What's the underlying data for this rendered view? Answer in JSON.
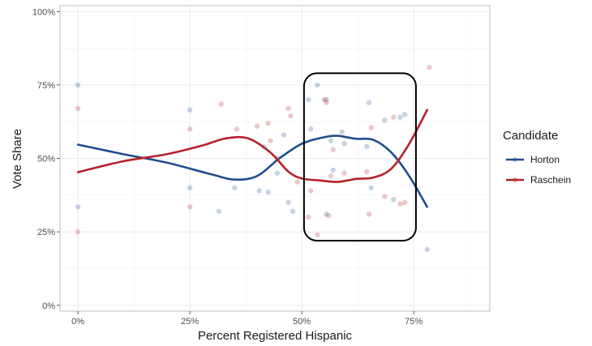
{
  "chart_data": {
    "type": "scatter",
    "xlabel": "Percent Registered Hispanic",
    "ylabel": "Vote Share",
    "xlim": [
      -0.04,
      0.92
    ],
    "ylim": [
      -0.02,
      1.02
    ],
    "x_ticks": [
      0,
      0.25,
      0.5,
      0.75
    ],
    "x_tick_labels": [
      "0%",
      "25%",
      "50%",
      "75%"
    ],
    "y_ticks": [
      0,
      0.25,
      0.5,
      0.75,
      1.0
    ],
    "y_tick_labels": [
      "0%",
      "25%",
      "50%",
      "75%",
      "100%"
    ],
    "grid": true,
    "legend": {
      "title": "Candidate",
      "position": "right"
    },
    "series": [
      {
        "name": "Horton",
        "color": "#1f4e8c",
        "points": [
          [
            0.0,
            0.75
          ],
          [
            0.0,
            0.335
          ],
          [
            0.25,
            0.665
          ],
          [
            0.25,
            0.4
          ],
          [
            0.315,
            0.32
          ],
          [
            0.35,
            0.4
          ],
          [
            0.405,
            0.39
          ],
          [
            0.415,
            0.54
          ],
          [
            0.425,
            0.385
          ],
          [
            0.445,
            0.45
          ],
          [
            0.46,
            0.58
          ],
          [
            0.47,
            0.35
          ],
          [
            0.48,
            0.32
          ],
          [
            0.515,
            0.7
          ],
          [
            0.52,
            0.6
          ],
          [
            0.535,
            0.75
          ],
          [
            0.555,
            0.7
          ],
          [
            0.555,
            0.31
          ],
          [
            0.565,
            0.56
          ],
          [
            0.57,
            0.46
          ],
          [
            0.59,
            0.59
          ],
          [
            0.595,
            0.55
          ],
          [
            0.645,
            0.54
          ],
          [
            0.65,
            0.69
          ],
          [
            0.655,
            0.4
          ],
          [
            0.685,
            0.63
          ],
          [
            0.705,
            0.36
          ],
          [
            0.72,
            0.64
          ],
          [
            0.73,
            0.65
          ],
          [
            0.78,
            0.19
          ]
        ],
        "trend": [
          [
            0.0,
            0.547
          ],
          [
            0.1,
            0.515
          ],
          [
            0.2,
            0.485
          ],
          [
            0.3,
            0.445
          ],
          [
            0.35,
            0.428
          ],
          [
            0.4,
            0.44
          ],
          [
            0.45,
            0.5
          ],
          [
            0.5,
            0.55
          ],
          [
            0.55,
            0.572
          ],
          [
            0.58,
            0.577
          ],
          [
            0.62,
            0.567
          ],
          [
            0.66,
            0.563
          ],
          [
            0.7,
            0.52
          ],
          [
            0.74,
            0.44
          ],
          [
            0.78,
            0.335
          ]
        ]
      },
      {
        "name": "Raschein",
        "color": "#b5222a",
        "points": [
          [
            0.0,
            0.67
          ],
          [
            0.0,
            0.25
          ],
          [
            0.25,
            0.6
          ],
          [
            0.25,
            0.335
          ],
          [
            0.32,
            0.685
          ],
          [
            0.355,
            0.6
          ],
          [
            0.4,
            0.61
          ],
          [
            0.425,
            0.62
          ],
          [
            0.43,
            0.56
          ],
          [
            0.445,
            0.5
          ],
          [
            0.47,
            0.67
          ],
          [
            0.475,
            0.645
          ],
          [
            0.49,
            0.42
          ],
          [
            0.515,
            0.3
          ],
          [
            0.52,
            0.39
          ],
          [
            0.535,
            0.24
          ],
          [
            0.55,
            0.7
          ],
          [
            0.555,
            0.69
          ],
          [
            0.56,
            0.305
          ],
          [
            0.565,
            0.44
          ],
          [
            0.57,
            0.53
          ],
          [
            0.595,
            0.45
          ],
          [
            0.645,
            0.455
          ],
          [
            0.65,
            0.31
          ],
          [
            0.655,
            0.605
          ],
          [
            0.685,
            0.37
          ],
          [
            0.705,
            0.64
          ],
          [
            0.72,
            0.345
          ],
          [
            0.73,
            0.35
          ],
          [
            0.785,
            0.81
          ]
        ],
        "trend": [
          [
            0.0,
            0.453
          ],
          [
            0.1,
            0.49
          ],
          [
            0.2,
            0.515
          ],
          [
            0.28,
            0.545
          ],
          [
            0.33,
            0.568
          ],
          [
            0.38,
            0.568
          ],
          [
            0.43,
            0.52
          ],
          [
            0.47,
            0.455
          ],
          [
            0.5,
            0.432
          ],
          [
            0.54,
            0.425
          ],
          [
            0.58,
            0.42
          ],
          [
            0.62,
            0.43
          ],
          [
            0.66,
            0.435
          ],
          [
            0.7,
            0.465
          ],
          [
            0.74,
            0.55
          ],
          [
            0.78,
            0.665
          ]
        ]
      }
    ],
    "annotations": [
      {
        "type": "rounded-rectangle",
        "x_range": [
          0.505,
          0.755
        ],
        "y_range": [
          0.22,
          0.79
        ]
      }
    ]
  }
}
